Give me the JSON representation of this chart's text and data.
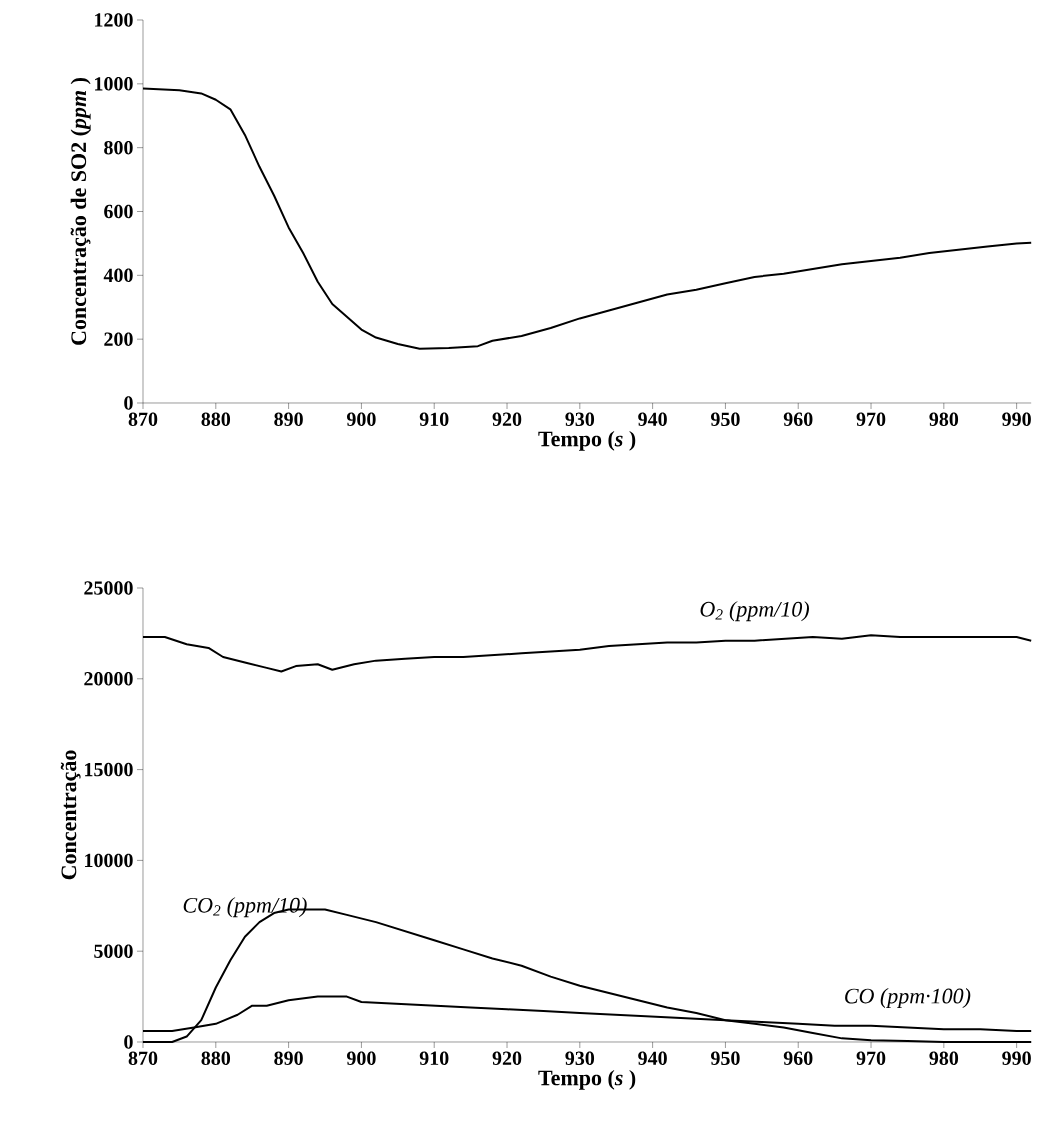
{
  "chart_data": [
    {
      "type": "line",
      "xlabel": "Tempo (*s* )",
      "ylabel": "Concentração de SO2 (*ppm* )",
      "xlim": [
        870,
        992
      ],
      "ylim": [
        0,
        1200
      ],
      "xticks": [
        870,
        880,
        890,
        900,
        910,
        920,
        930,
        940,
        950,
        960,
        970,
        980,
        990
      ],
      "yticks": [
        0,
        200,
        400,
        600,
        800,
        1000,
        1200
      ],
      "series": [
        {
          "color": "#000000",
          "x": [
            870,
            875,
            878,
            880,
            882,
            884,
            886,
            888,
            890,
            892,
            894,
            896,
            898,
            900,
            902,
            905,
            908,
            912,
            916,
            918,
            922,
            926,
            930,
            934,
            938,
            942,
            946,
            950,
            954,
            958,
            962,
            966,
            970,
            974,
            978,
            982,
            986,
            990,
            992
          ],
          "values": [
            985,
            980,
            970,
            950,
            920,
            840,
            740,
            650,
            550,
            470,
            380,
            310,
            270,
            230,
            205,
            185,
            170,
            172,
            178,
            195,
            210,
            235,
            265,
            290,
            315,
            340,
            355,
            375,
            395,
            405,
            420,
            435,
            445,
            455,
            470,
            480,
            490,
            500,
            502
          ]
        }
      ]
    },
    {
      "type": "line",
      "xlabel": "Tempo (*s* )",
      "ylabel": "Concentração",
      "xlim": [
        870,
        992
      ],
      "ylim": [
        0,
        25000
      ],
      "xticks": [
        870,
        880,
        890,
        900,
        910,
        920,
        930,
        940,
        950,
        960,
        970,
        980,
        990
      ],
      "yticks": [
        0,
        5000,
        10000,
        15000,
        20000,
        25000
      ],
      "series": [
        {
          "name": "O$_{2}$ (ppm/10)",
          "color": "#000000",
          "x": [
            870,
            873,
            876,
            879,
            881,
            884,
            887,
            889,
            891,
            894,
            896,
            899,
            902,
            906,
            910,
            914,
            918,
            922,
            926,
            930,
            934,
            938,
            942,
            946,
            950,
            954,
            958,
            962,
            966,
            970,
            974,
            978,
            982,
            986,
            990,
            992
          ],
          "values": [
            22300,
            22300,
            21900,
            21700,
            21200,
            20900,
            20600,
            20400,
            20700,
            20800,
            20500,
            20800,
            21000,
            21100,
            21200,
            21200,
            21300,
            21400,
            21500,
            21600,
            21800,
            21900,
            22000,
            22000,
            22100,
            22100,
            22200,
            22300,
            22200,
            22400,
            22300,
            22300,
            22300,
            22300,
            22300,
            22100
          ]
        },
        {
          "name": "CO$_{2}$ (ppm/10)",
          "color": "#000000",
          "x": [
            870,
            874,
            876,
            878,
            880,
            882,
            884,
            886,
            888,
            890,
            895,
            898,
            902,
            906,
            910,
            914,
            918,
            922,
            926,
            930,
            934,
            938,
            942,
            946,
            950,
            954,
            958,
            962,
            966,
            970,
            975,
            980,
            992
          ],
          "values": [
            0,
            0,
            300,
            1200,
            3000,
            4500,
            5800,
            6600,
            7100,
            7300,
            7300,
            7000,
            6600,
            6100,
            5600,
            5100,
            4600,
            4200,
            3600,
            3100,
            2700,
            2300,
            1900,
            1600,
            1200,
            1000,
            800,
            500,
            200,
            100,
            50,
            0,
            0
          ]
        },
        {
          "name": "CO (ppm·100)",
          "color": "#000000",
          "x": [
            870,
            874,
            877,
            880,
            883,
            885,
            887,
            890,
            894,
            898,
            900,
            905,
            910,
            915,
            920,
            925,
            930,
            935,
            940,
            945,
            950,
            955,
            960,
            965,
            970,
            975,
            980,
            985,
            990,
            992
          ],
          "values": [
            600,
            600,
            800,
            1000,
            1500,
            2000,
            2000,
            2300,
            2500,
            2500,
            2200,
            2100,
            2000,
            1900,
            1800,
            1700,
            1600,
            1500,
            1400,
            1300,
            1200,
            1100,
            1000,
            900,
            900,
            800,
            700,
            700,
            600,
            600
          ]
        }
      ]
    }
  ]
}
